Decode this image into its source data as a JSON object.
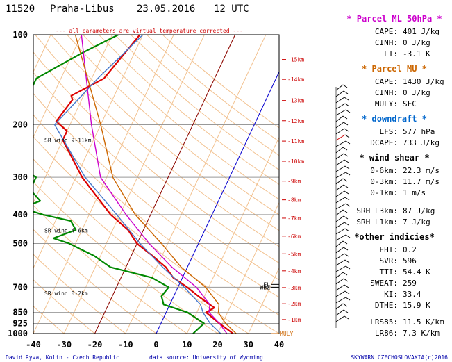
{
  "header": {
    "station": "11520",
    "place": "Praha-Libus",
    "date": "23.05.2016",
    "time": "12 UTC",
    "note": "--- all parameters are virtual temperature corrected ---"
  },
  "footer": {
    "author": "David Ryva, Kolin - Czech Republic",
    "source": "data source: University of Wyoming",
    "copyright": "SKYWARN CZECHOSLOVAKIA(c)2016"
  },
  "panels": [
    {
      "title": "* Parcel ML 50hPa *",
      "color": "#cc00cc",
      "rows": [
        {
          "label": "CAPE:",
          "value": "401 J/kg"
        },
        {
          "label": "CINH:",
          "value": "0 J/kg"
        },
        {
          "label": "LI:",
          "value": "-3.1 K"
        }
      ]
    },
    {
      "title": "* Parcel MU *",
      "color": "#cc6600",
      "rows": [
        {
          "label": "CAPE:",
          "value": "1430 J/kg"
        },
        {
          "label": "CINH:",
          "value": "0 J/kg"
        },
        {
          "label": "MULY:",
          "value": "SFC"
        }
      ]
    },
    {
      "title": "* downdraft *",
      "color": "#0066cc",
      "rows": [
        {
          "label": "LFS:",
          "value": "577 hPa"
        },
        {
          "label": "DCAPE:",
          "value": "733 J/kg"
        }
      ]
    },
    {
      "title": "* wind shear *",
      "color": "#000000",
      "rows": [
        {
          "label": "0-6km:",
          "value": "22.3 m/s"
        },
        {
          "label": "0-3km:",
          "value": "11.7 m/s"
        },
        {
          "label": "0-1km:",
          "value": "1 m/s"
        },
        {
          "label": "SRH L3km:",
          "value": "87 J/kg"
        },
        {
          "label": "SRH L1km:",
          "value": "7 J/kg"
        }
      ]
    },
    {
      "title": "*other indicies*",
      "color": "#000000",
      "rows": [
        {
          "label": "EHI:",
          "value": "0.2"
        },
        {
          "label": "SVR:",
          "value": "596"
        },
        {
          "label": "TTI:",
          "value": "54.4 K"
        },
        {
          "label": "SWEAT:",
          "value": "259"
        },
        {
          "label": "KI:",
          "value": "33.4"
        },
        {
          "label": "DTHE:",
          "value": "15.9 K"
        },
        {
          "label": "LRS85:",
          "value": "11.5 K/km"
        },
        {
          "label": "LR86:",
          "value": "7.3 K/km"
        }
      ]
    }
  ],
  "chart_data": {
    "type": "line",
    "xlim": [
      -40,
      40
    ],
    "x_ticks": [
      -40,
      -30,
      -20,
      -10,
      0,
      10,
      20,
      30,
      40
    ],
    "pressure_ticks": [
      100,
      200,
      300,
      400,
      500,
      700,
      850,
      925,
      1000
    ],
    "height_labels": [
      {
        "label": "-1km",
        "p": 898
      },
      {
        "label": "-2km",
        "p": 795
      },
      {
        "label": "-3km",
        "p": 702
      },
      {
        "label": "-4km",
        "p": 617
      },
      {
        "label": "-5km",
        "p": 541
      },
      {
        "label": "-6km",
        "p": 472
      },
      {
        "label": "-7km",
        "p": 411
      },
      {
        "label": "-8km",
        "p": 357
      },
      {
        "label": "-9km",
        "p": 309
      },
      {
        "label": "-10km",
        "p": 265
      },
      {
        "label": "-11km",
        "p": 227
      },
      {
        "label": "-12km",
        "p": 194
      },
      {
        "label": "-13km",
        "p": 166
      },
      {
        "label": "-14km",
        "p": 141
      },
      {
        "label": "-15km",
        "p": 121
      }
    ],
    "wind_layer_labels": [
      {
        "label": "SR wind 9-11km",
        "p": 225
      },
      {
        "label": "SR wind 4-6km",
        "p": 452
      },
      {
        "label": "SR wind 0-2km",
        "p": 733
      }
    ],
    "level_labels": [
      {
        "label": "EL",
        "p": 685
      },
      {
        "label": "WBZ",
        "p": 700
      },
      {
        "label": "MULY",
        "p": 1000
      }
    ],
    "series": [
      {
        "role": "temperature",
        "color": "#dd0000",
        "points": [
          [
            100,
            -51
          ],
          [
            140,
            -56
          ],
          [
            160,
            -64
          ],
          [
            165,
            -63
          ],
          [
            195,
            -65
          ],
          [
            210,
            -60
          ],
          [
            225,
            -60
          ],
          [
            300,
            -48
          ],
          [
            350,
            -40
          ],
          [
            400,
            -33
          ],
          [
            450,
            -25
          ],
          [
            500,
            -20
          ],
          [
            550,
            -13
          ],
          [
            600,
            -7
          ],
          [
            650,
            -3
          ],
          [
            700,
            3
          ],
          [
            750,
            8
          ],
          [
            800,
            13
          ],
          [
            820,
            15
          ],
          [
            850,
            13
          ],
          [
            925,
            19
          ],
          [
            1000,
            25
          ]
        ]
      },
      {
        "role": "dewpoint",
        "color": "#008800",
        "points": [
          [
            100,
            -58
          ],
          [
            115,
            -67
          ],
          [
            140,
            -78
          ],
          [
            160,
            -78
          ],
          [
            200,
            -80
          ],
          [
            215,
            -78
          ],
          [
            240,
            -77
          ],
          [
            260,
            -75
          ],
          [
            300,
            -63
          ],
          [
            330,
            -63
          ],
          [
            360,
            -58
          ],
          [
            380,
            -63
          ],
          [
            400,
            -55
          ],
          [
            420,
            -45
          ],
          [
            450,
            -42
          ],
          [
            480,
            -48
          ],
          [
            500,
            -42
          ],
          [
            550,
            -32
          ],
          [
            600,
            -25
          ],
          [
            650,
            -10
          ],
          [
            700,
            -3
          ],
          [
            750,
            -4
          ],
          [
            800,
            -2
          ],
          [
            850,
            7
          ],
          [
            925,
            14
          ],
          [
            1000,
            12
          ]
        ]
      },
      {
        "role": "virtual-temperature",
        "color": "#4477cc",
        "points": [
          [
            100,
            -50
          ],
          [
            140,
            -58
          ],
          [
            200,
            -65
          ],
          [
            300,
            -47
          ],
          [
            400,
            -31
          ],
          [
            500,
            -19
          ],
          [
            600,
            -8
          ],
          [
            700,
            2
          ],
          [
            800,
            10
          ],
          [
            850,
            12
          ],
          [
            925,
            16
          ],
          [
            1000,
            21
          ]
        ]
      },
      {
        "role": "parcel-ML",
        "color": "#cc00cc",
        "points": [
          [
            100,
            -70
          ],
          [
            200,
            -53
          ],
          [
            300,
            -42
          ],
          [
            400,
            -28
          ],
          [
            500,
            -16
          ],
          [
            600,
            -5
          ],
          [
            700,
            6
          ],
          [
            800,
            13
          ],
          [
            850,
            14
          ],
          [
            925,
            19
          ],
          [
            1000,
            23
          ]
        ]
      },
      {
        "role": "parcel-MU",
        "color": "#cc6600",
        "points": [
          [
            100,
            -72
          ],
          [
            200,
            -50
          ],
          [
            300,
            -38
          ],
          [
            400,
            -25
          ],
          [
            500,
            -12
          ],
          [
            600,
            -2
          ],
          [
            700,
            9
          ],
          [
            800,
            16
          ],
          [
            850,
            17
          ],
          [
            925,
            21
          ],
          [
            1000,
            26
          ]
        ]
      }
    ]
  }
}
